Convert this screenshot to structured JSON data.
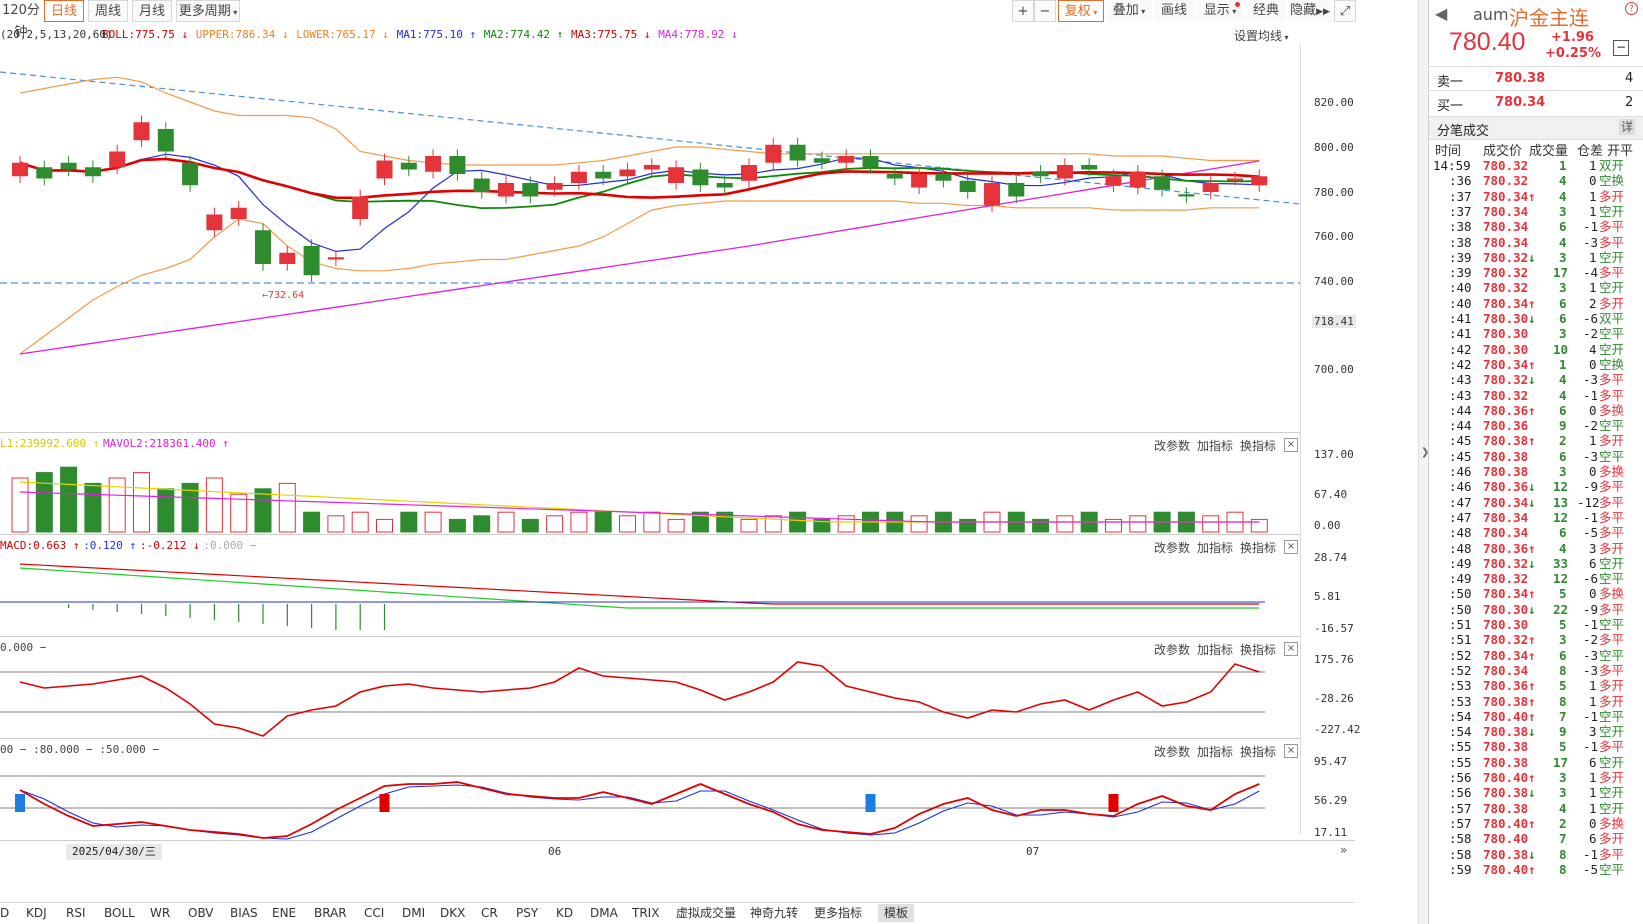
{
  "toolbar": {
    "period_buttons": [
      "120分钟",
      "日线",
      "周线",
      "月线",
      "更多周期"
    ],
    "active_period": "日线",
    "right_buttons": [
      "复权",
      "叠加",
      "画线",
      "显示",
      "经典",
      "隐藏"
    ],
    "plus": "+",
    "minus": "−",
    "expand": "⤢"
  },
  "main_legend": {
    "params": "(20,2,5,13,20,60)",
    "items": [
      {
        "text": "BOLL:775.75",
        "arrow": "↓",
        "color": "#cc0000"
      },
      {
        "text": "UPPER:786.34",
        "arrow": "↓",
        "color": "#f08020"
      },
      {
        "text": "LOWER:765.17",
        "arrow": "↓",
        "color": "#f08020"
      },
      {
        "text": "MA1:775.10",
        "arrow": "↑",
        "color": "#1f2dd8"
      },
      {
        "text": "MA2:774.42",
        "arrow": "↑",
        "color": "#0a8a0a"
      },
      {
        "text": "MA3:775.75",
        "arrow": "↓",
        "color": "#cc0000"
      },
      {
        "text": "MA4:778.92",
        "arrow": "↓",
        "color": "#e020e0"
      }
    ],
    "settings": "设置均线"
  },
  "price_axis": [
    "820.00",
    "800.00",
    "780.00",
    "760.00",
    "740.00",
    "718.41",
    "700.00"
  ],
  "low_annotation": "←732.64",
  "vol_panel": {
    "legend": [
      {
        "text": "L1:239992.600",
        "arrow": "↑",
        "color": "#d8c800"
      },
      {
        "text": "MAVOL2:218361.400",
        "arrow": "↑",
        "color": "#e020e0"
      }
    ],
    "axis": [
      "137.00",
      "67.40",
      "0.00"
    ]
  },
  "macd_panel": {
    "legend": [
      {
        "text": "MACD:0.663",
        "arrow": "↑",
        "color": "#cc0000"
      },
      {
        "text": ":0.120",
        "arrow": "↑",
        "color": "#1f2dd8"
      },
      {
        "text": ":-0.212",
        "arrow": "↓",
        "color": "#cc0000"
      },
      {
        "text": ":0.000 −",
        "arrow": "",
        "color": "#aaaaaa"
      }
    ],
    "axis": [
      "28.74",
      "5.81",
      "-16.57"
    ]
  },
  "cci_panel": {
    "legend": [
      {
        "text": "0.000 −",
        "arrow": "",
        "color": "#444444"
      }
    ],
    "axis": [
      "175.76",
      "-28.26",
      "-227.42"
    ]
  },
  "kd_panel": {
    "legend": [
      {
        "text": "00 − :80.000 − :50.000 −",
        "arrow": "",
        "color": "#444444"
      }
    ],
    "axis": [
      "95.47",
      "56.29",
      "17.11"
    ]
  },
  "panel_actions": [
    "改参数",
    "加指标",
    "换指标"
  ],
  "close": "×",
  "date_axis": {
    "cursor_date": "2025/04/30/三",
    "labels": [
      "06",
      "07"
    ]
  },
  "bottom_tabs": [
    "D",
    "KDJ",
    "RSI",
    "BOLL",
    "WR",
    "OBV",
    "BIAS",
    "ENE",
    "BRAR",
    "CCI",
    "DMI",
    "DKX",
    "CR",
    "PSY",
    "KD",
    "DMA",
    "TRIX",
    "虚拟成交量",
    "神奇九转",
    "更多指标",
    "模板"
  ],
  "active_tab": "模板",
  "quote": {
    "code": "aum",
    "name": "沪金主连",
    "price": "780.40",
    "change": "+1.96",
    "change_pct": "+0.25%",
    "sell_label": "卖一",
    "sell_price": "780.38",
    "sell_vol": "4",
    "buy_label": "买一",
    "buy_price": "780.34",
    "buy_vol": "2"
  },
  "trades_panel": {
    "title": "分笔成交",
    "detail": "详",
    "headers": [
      "时间",
      "成交价",
      "成交量",
      "仓差",
      "开平"
    ],
    "rows": [
      [
        "14:59",
        "780.32",
        "",
        "1",
        "1",
        "双开"
      ],
      [
        ":36",
        "780.32",
        "",
        "4",
        "0",
        "空换"
      ],
      [
        ":37",
        "780.34",
        "↑",
        "4",
        "1",
        "多开"
      ],
      [
        ":37",
        "780.34",
        "",
        "3",
        "1",
        "空开"
      ],
      [
        ":38",
        "780.34",
        "",
        "6",
        "-1",
        "多平"
      ],
      [
        ":38",
        "780.34",
        "",
        "4",
        "-3",
        "多平"
      ],
      [
        ":39",
        "780.32",
        "↓",
        "3",
        "1",
        "空开"
      ],
      [
        ":39",
        "780.32",
        "",
        "17",
        "-4",
        "多平"
      ],
      [
        ":40",
        "780.32",
        "",
        "3",
        "1",
        "空开"
      ],
      [
        ":40",
        "780.34",
        "↑",
        "6",
        "2",
        "多开"
      ],
      [
        ":41",
        "780.30",
        "↓",
        "6",
        "-6",
        "双平"
      ],
      [
        ":41",
        "780.30",
        "",
        "3",
        "-2",
        "空平"
      ],
      [
        ":42",
        "780.30",
        "",
        "10",
        "4",
        "空开"
      ],
      [
        ":42",
        "780.34",
        "↑",
        "1",
        "0",
        "空换"
      ],
      [
        ":43",
        "780.32",
        "↓",
        "4",
        "-3",
        "多平"
      ],
      [
        ":43",
        "780.32",
        "",
        "4",
        "-1",
        "多平"
      ],
      [
        ":44",
        "780.36",
        "↑",
        "6",
        "0",
        "多换"
      ],
      [
        ":44",
        "780.36",
        "",
        "9",
        "-2",
        "空平"
      ],
      [
        ":45",
        "780.38",
        "↑",
        "2",
        "1",
        "多开"
      ],
      [
        ":45",
        "780.38",
        "",
        "6",
        "-3",
        "空平"
      ],
      [
        ":46",
        "780.38",
        "",
        "3",
        "0",
        "多换"
      ],
      [
        ":46",
        "780.36",
        "↓",
        "12",
        "-9",
        "多平"
      ],
      [
        ":47",
        "780.34",
        "↓",
        "13",
        "-12",
        "多平"
      ],
      [
        ":47",
        "780.34",
        "",
        "12",
        "-1",
        "多平"
      ],
      [
        ":48",
        "780.34",
        "",
        "6",
        "-5",
        "多平"
      ],
      [
        ":48",
        "780.36",
        "↑",
        "4",
        "3",
        "多开"
      ],
      [
        ":49",
        "780.32",
        "↓",
        "33",
        "6",
        "空开"
      ],
      [
        ":49",
        "780.32",
        "",
        "12",
        "-6",
        "空平"
      ],
      [
        ":50",
        "780.34",
        "↑",
        "5",
        "0",
        "多换"
      ],
      [
        ":50",
        "780.30",
        "↓",
        "22",
        "-9",
        "多平"
      ],
      [
        ":51",
        "780.30",
        "",
        "5",
        "-1",
        "空平"
      ],
      [
        ":51",
        "780.32",
        "↑",
        "3",
        "-2",
        "多平"
      ],
      [
        ":52",
        "780.34",
        "↑",
        "6",
        "-3",
        "空平"
      ],
      [
        ":52",
        "780.34",
        "",
        "8",
        "-3",
        "多平"
      ],
      [
        ":53",
        "780.36",
        "↑",
        "5",
        "1",
        "多开"
      ],
      [
        ":53",
        "780.38",
        "↑",
        "8",
        "1",
        "多开"
      ],
      [
        ":54",
        "780.40",
        "↑",
        "7",
        "-1",
        "空平"
      ],
      [
        ":54",
        "780.38",
        "↓",
        "9",
        "3",
        "空开"
      ],
      [
        ":55",
        "780.38",
        "",
        "5",
        "-1",
        "多平"
      ],
      [
        ":55",
        "780.38",
        "",
        "17",
        "6",
        "空开"
      ],
      [
        ":56",
        "780.40",
        "↑",
        "3",
        "1",
        "多开"
      ],
      [
        ":56",
        "780.38",
        "↓",
        "3",
        "1",
        "空开"
      ],
      [
        ":57",
        "780.38",
        "",
        "4",
        "1",
        "空开"
      ],
      [
        ":57",
        "780.40",
        "↑",
        "2",
        "0",
        "多换"
      ],
      [
        ":58",
        "780.40",
        "",
        "7",
        "6",
        "多开"
      ],
      [
        ":58",
        "780.38",
        "↓",
        "8",
        "-1",
        "多平"
      ],
      [
        ":59",
        "780.40",
        "↑",
        "8",
        "-5",
        "空平"
      ]
    ]
  },
  "colors": {
    "up": "#e5333a",
    "down": "#2e8b2e",
    "accent": "#e36d2c"
  }
}
